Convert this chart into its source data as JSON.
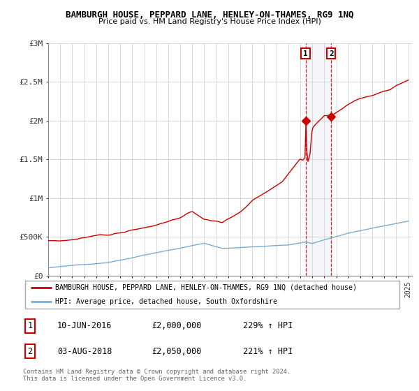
{
  "title": "BAMBURGH HOUSE, PEPPARD LANE, HENLEY-ON-THAMES, RG9 1NQ",
  "subtitle": "Price paid vs. HM Land Registry's House Price Index (HPI)",
  "x_start_year": 1995,
  "x_end_year": 2025,
  "ylim": [
    0,
    3000000
  ],
  "yticks": [
    0,
    500000,
    1000000,
    1500000,
    2000000,
    2500000,
    3000000
  ],
  "ytick_labels": [
    "£0",
    "£500K",
    "£1M",
    "£1.5M",
    "£2M",
    "£2.5M",
    "£3M"
  ],
  "sale1_date": 2016.44,
  "sale1_price": 2000000,
  "sale1_label": "10-JUN-2016",
  "sale1_pct": "229%",
  "sale2_date": 2018.58,
  "sale2_price": 2050000,
  "sale2_label": "03-AUG-2018",
  "sale2_pct": "221%",
  "legend_line1": "BAMBURGH HOUSE, PEPPARD LANE, HENLEY-ON-THAMES, RG9 1NQ (detached house)",
  "legend_line2": "HPI: Average price, detached house, South Oxfordshire",
  "footer": "Contains HM Land Registry data © Crown copyright and database right 2024.\nThis data is licensed under the Open Government Licence v3.0.",
  "red_color": "#cc0000",
  "blue_color": "#7aadd4"
}
